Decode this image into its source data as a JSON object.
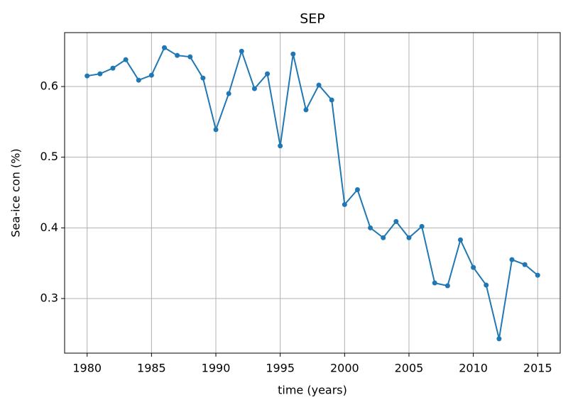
{
  "chart_data": {
    "type": "line",
    "title": "SEP",
    "x_label": "time (years)",
    "y_label": "Sea-ice con (%)",
    "x": [
      1980,
      1981,
      1982,
      1983,
      1984,
      1985,
      1986,
      1987,
      1988,
      1989,
      1990,
      1991,
      1992,
      1993,
      1994,
      1995,
      1996,
      1997,
      1998,
      1999,
      2000,
      2001,
      2002,
      2003,
      2004,
      2005,
      2006,
      2007,
      2008,
      2009,
      2010,
      2011,
      2012,
      2013,
      2014,
      2015
    ],
    "series": [
      {
        "name": "SEP",
        "color": "#1f77b4",
        "values": [
          0.615,
          0.618,
          0.626,
          0.638,
          0.609,
          0.616,
          0.655,
          0.644,
          0.642,
          0.612,
          0.539,
          0.59,
          0.65,
          0.597,
          0.618,
          0.516,
          0.646,
          0.567,
          0.602,
          0.581,
          0.433,
          0.454,
          0.4,
          0.386,
          0.409,
          0.386,
          0.402,
          0.322,
          0.318,
          0.383,
          0.344,
          0.319,
          0.243,
          0.355,
          0.348,
          0.333
        ]
      }
    ],
    "xlim": [
      1978.25,
      2016.75
    ],
    "xticks": [
      1980,
      1985,
      1990,
      1995,
      2000,
      2005,
      2010,
      2015
    ],
    "ylim": [
      0.2227,
      0.6763
    ],
    "yticks": [
      0.3,
      0.4,
      0.5,
      0.6
    ],
    "grid": true
  }
}
